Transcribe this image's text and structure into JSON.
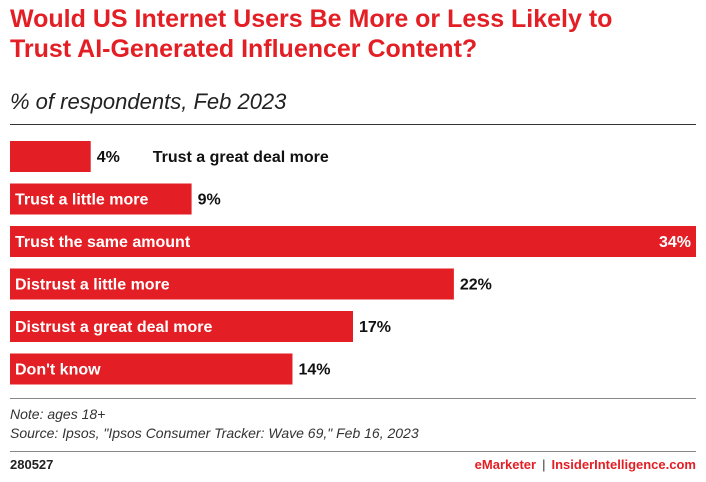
{
  "colors": {
    "accent": "#e31e24",
    "text_dark": "#111111",
    "text_light": "#ffffff"
  },
  "chart_data": {
    "type": "bar",
    "orientation": "horizontal",
    "title_lines": [
      "Would US Internet Users Be More or Less Likely to",
      "Trust AI-Generated Influencer Content?"
    ],
    "subtitle": "% of respondents, Feb 2023",
    "categories": [
      "Trust a great deal more",
      "Trust a little more",
      "Trust the same amount",
      "Distrust a little more",
      "Distrust a great deal more",
      "Don't know"
    ],
    "values": [
      4,
      9,
      34,
      22,
      17,
      14
    ],
    "value_labels": [
      "4%",
      "9%",
      "34%",
      "22%",
      "17%",
      "14%"
    ],
    "xlim": [
      0,
      34
    ],
    "unit": "%",
    "grid": false,
    "legend": false
  },
  "footer": {
    "note": "Note: ages 18+",
    "source": "Source: Ipsos, \"Ipsos Consumer Tracker: Wave 69,\" Feb 16, 2023",
    "chart_id": "280527",
    "brand_left": "eMarketer",
    "brand_separator": "|",
    "brand_right": "InsiderIntelligence.com"
  }
}
